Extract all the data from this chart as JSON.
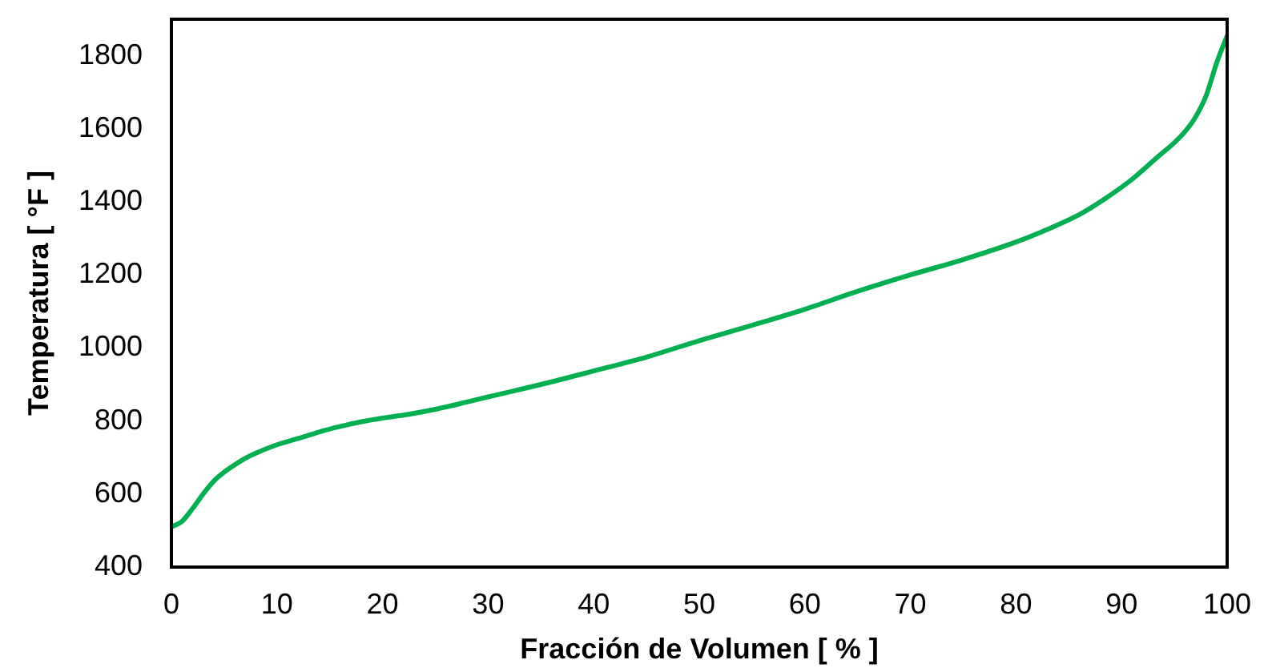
{
  "chart_data": {
    "type": "line",
    "xlabel": "Fracción de Volumen [ % ]",
    "ylabel": "Temperatura [ °F ]",
    "x": [
      0,
      1,
      2,
      3,
      4,
      5,
      6,
      7,
      8,
      10,
      12,
      14,
      16,
      18,
      20,
      22,
      25,
      28,
      30,
      35,
      40,
      45,
      50,
      55,
      60,
      65,
      70,
      75,
      80,
      83,
      86,
      88.5,
      91,
      93.5,
      95,
      96,
      97,
      98,
      99,
      100
    ],
    "series": [
      {
        "color": "#00b050",
        "values": [
          510,
          525,
          560,
          600,
          635,
          660,
          680,
          698,
          712,
          735,
          752,
          770,
          785,
          798,
          808,
          816,
          832,
          852,
          866,
          900,
          937,
          975,
          1020,
          1062,
          1106,
          1155,
          1200,
          1242,
          1290,
          1325,
          1365,
          1410,
          1462,
          1525,
          1562,
          1592,
          1632,
          1690,
          1780,
          1855
        ]
      }
    ],
    "xlim": [
      0,
      100
    ],
    "xticks": [
      0,
      10,
      20,
      30,
      40,
      50,
      60,
      70,
      80,
      90,
      100
    ],
    "ylim": [
      400,
      1900
    ],
    "yticks": [
      400,
      600,
      800,
      1000,
      1200,
      1400,
      1600,
      1800
    ],
    "marker": "none",
    "line_style": "solid"
  }
}
